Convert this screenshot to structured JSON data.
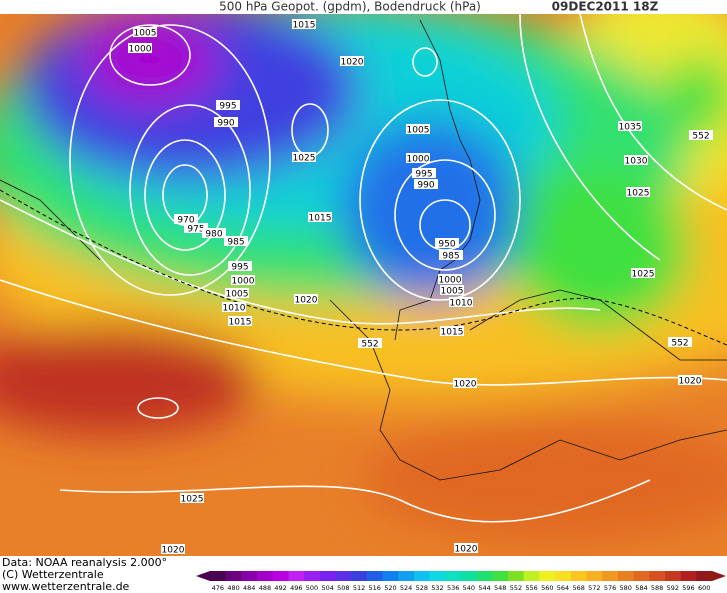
{
  "header": {
    "title": "500 hPa Geopot. (gpdm), Bodendruck (hPa)",
    "date": "09DEC2011 18Z"
  },
  "map": {
    "labels": [
      "1005",
      "1015",
      "1000",
      "1020",
      "995",
      "990",
      "1005",
      "1025",
      "1000",
      "995",
      "990",
      "1015",
      "970",
      "975",
      "980",
      "985",
      "950",
      "985",
      "995",
      "1000",
      "1000",
      "1005",
      "1005",
      "1020",
      "1010",
      "1010",
      "1015",
      "1015",
      "552",
      "1035",
      "552",
      "1030",
      "1025",
      "1025",
      "552",
      "1020",
      "1020",
      "1025",
      "1020",
      "1020"
    ]
  },
  "footer": {
    "source": "Data: NOAA reanalysis 2.000°",
    "copyright": "(C) Wetterzentrale",
    "url": "www.wetterzentrale.de"
  },
  "colorbar": {
    "ticks": [
      476,
      480,
      484,
      488,
      492,
      496,
      500,
      504,
      508,
      512,
      516,
      520,
      524,
      528,
      532,
      536,
      540,
      544,
      548,
      552,
      556,
      560,
      564,
      568,
      572,
      576,
      580,
      584,
      588,
      592,
      596,
      600
    ],
    "colors": [
      "#4b0050",
      "#6a0080",
      "#8a00a8",
      "#a400c8",
      "#b800e0",
      "#c020f0",
      "#9a20f0",
      "#7a20f0",
      "#5a30e8",
      "#3a40e0",
      "#2060e8",
      "#1080f0",
      "#10a0f0",
      "#10c0f0",
      "#10d8e0",
      "#10e0c0",
      "#10e0a0",
      "#20e070",
      "#40e040",
      "#80e020",
      "#c0f020",
      "#f0f020",
      "#f8e020",
      "#f8c820",
      "#f8b020",
      "#f09820",
      "#e88020",
      "#e06820",
      "#d85020",
      "#c83820",
      "#b02020",
      "#901818"
    ]
  }
}
